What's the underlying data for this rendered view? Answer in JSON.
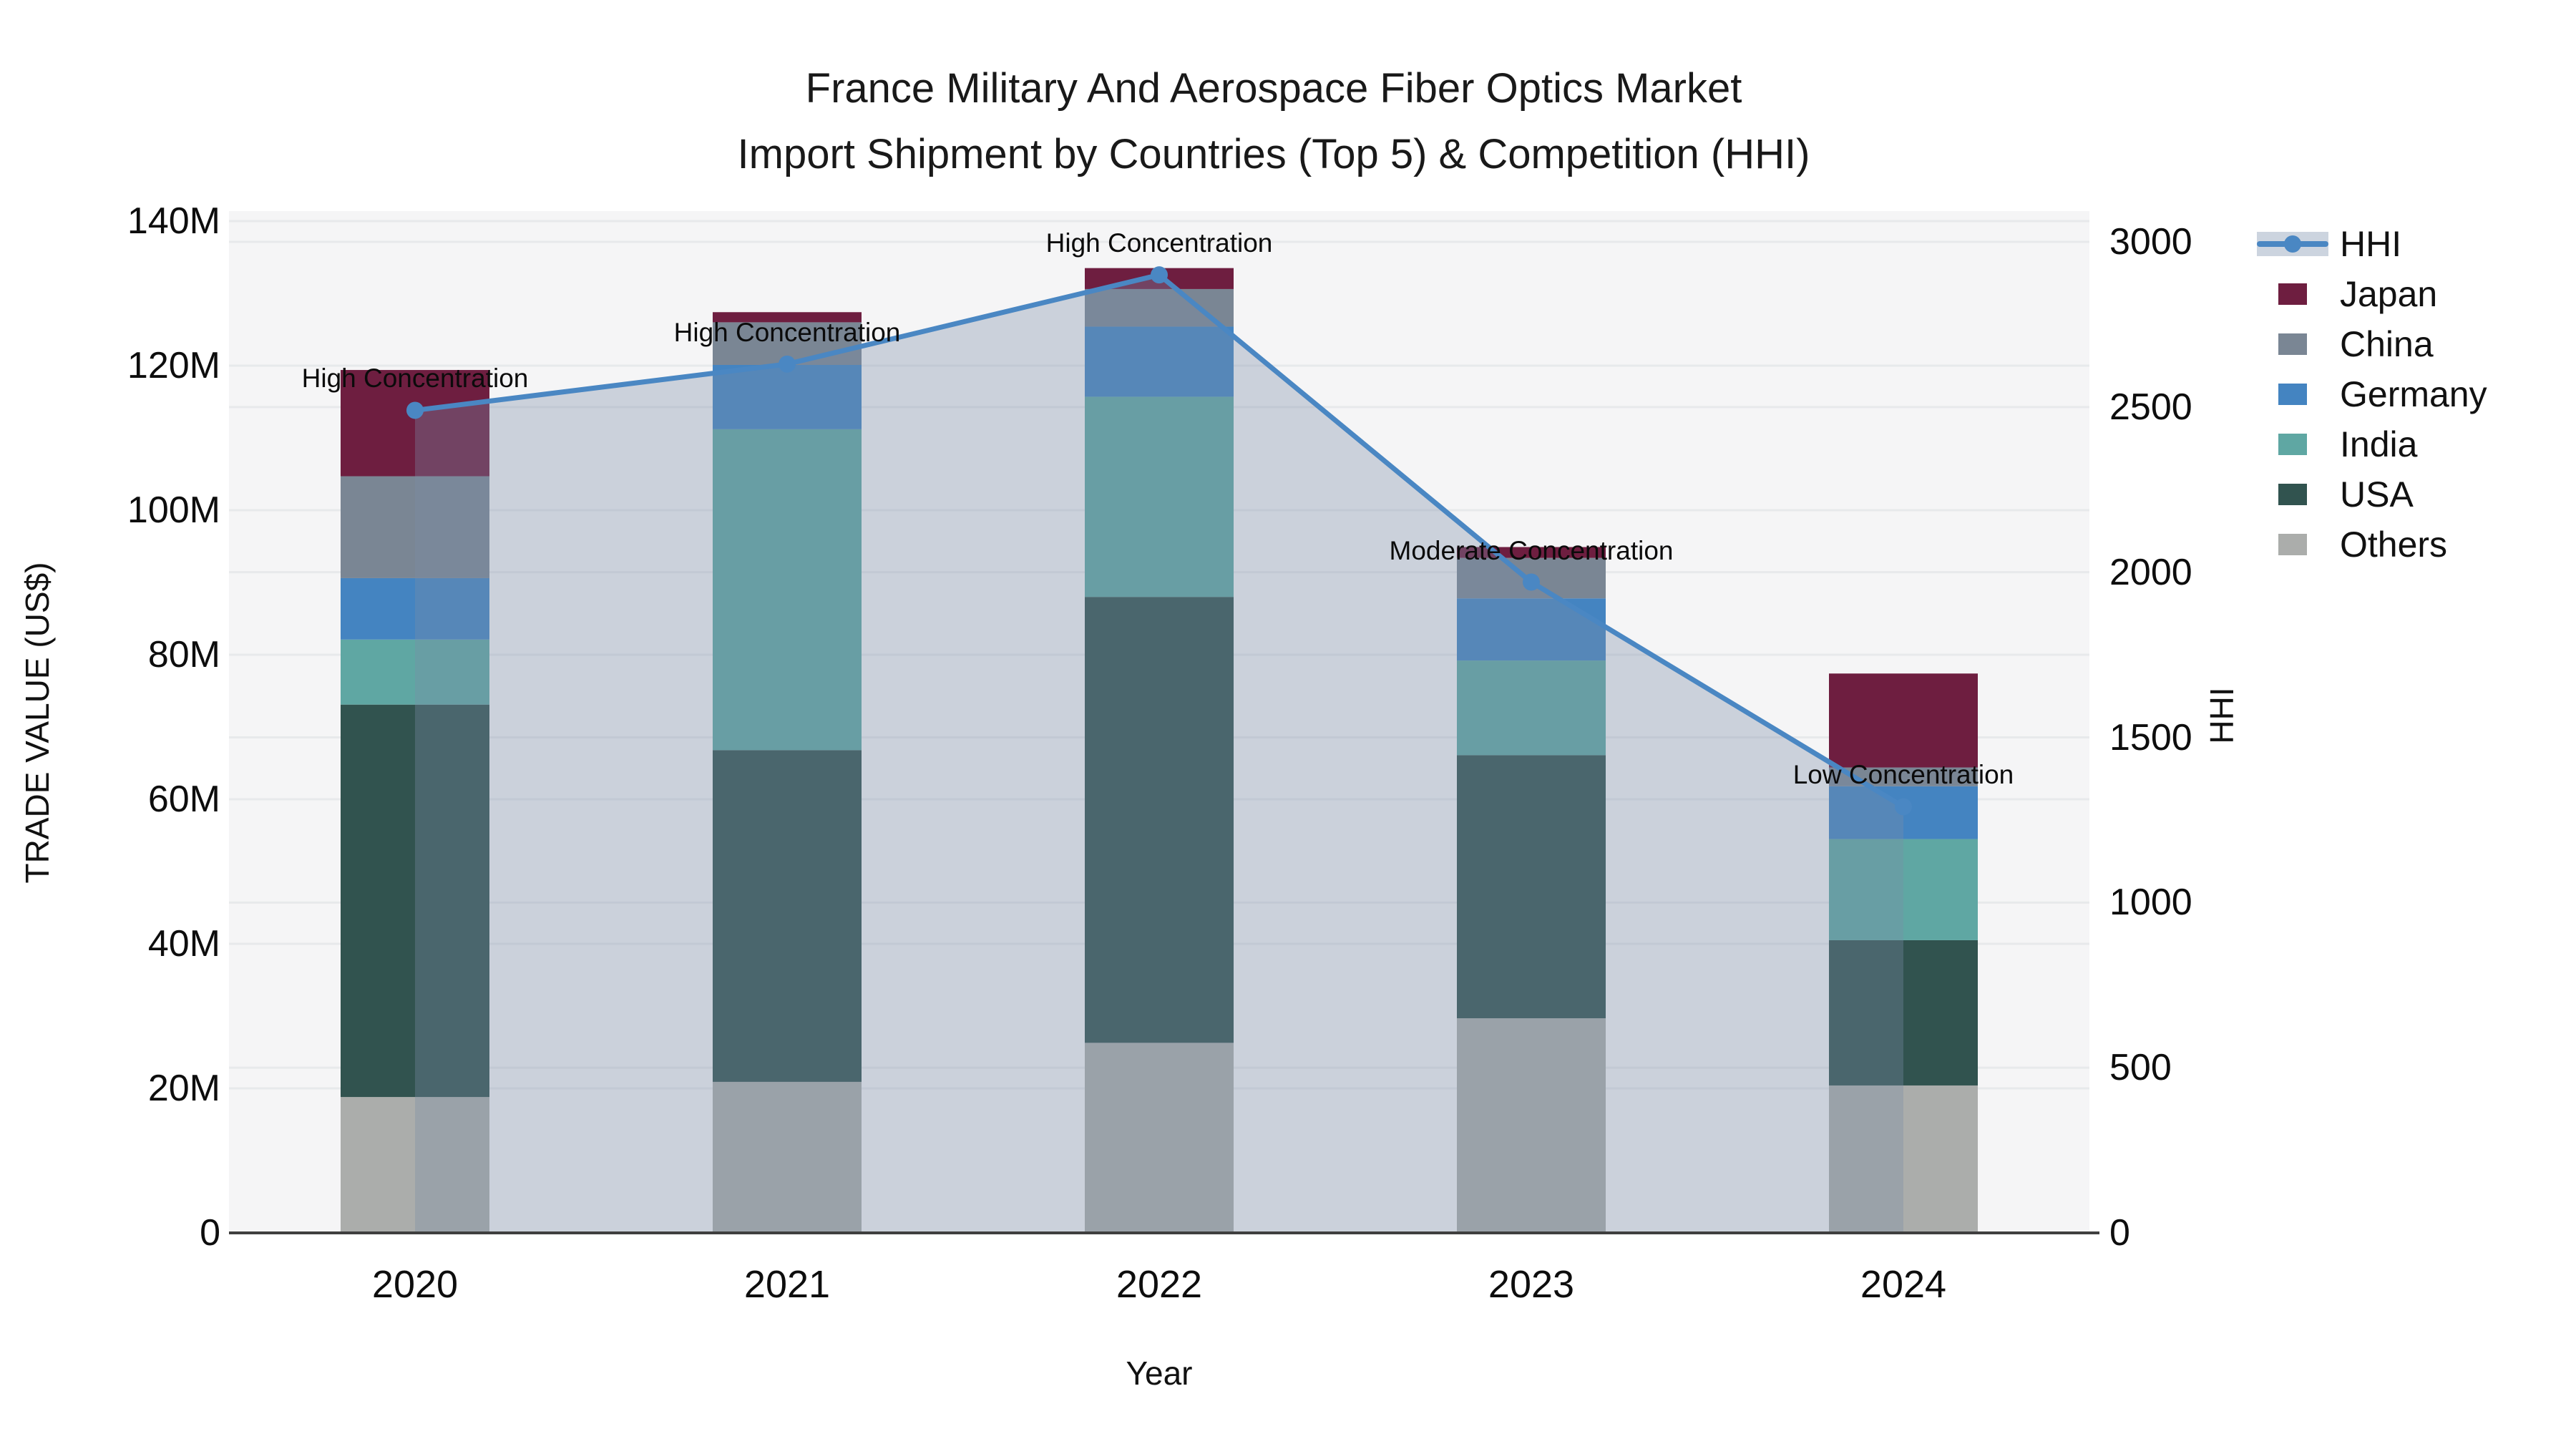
{
  "title": {
    "line1": "France Military And Aerospace Fiber Optics Market",
    "line2": "Import Shipment by Countries (Top 5) & Competition (HHI)"
  },
  "chart_data": {
    "type": "bar",
    "subtype": "stacked-bars-with-line-overlay",
    "categories": [
      "2020",
      "2021",
      "2022",
      "2023",
      "2024"
    ],
    "xlabel": "Year",
    "ylabel": "TRADE VALUE (US$)",
    "y2label": "HHI",
    "ylim_millions": [
      0,
      141.5
    ],
    "y2lim": [
      0,
      3000
    ],
    "grid": "on",
    "yticks": [
      "0",
      "20M",
      "40M",
      "60M",
      "80M",
      "100M",
      "120M",
      "140M"
    ],
    "ytick_values_millions": [
      0,
      20,
      40,
      60,
      80,
      100,
      120,
      140
    ],
    "y2ticks": [
      "0",
      "500",
      "1000",
      "1500",
      "2000",
      "2500",
      "3000"
    ],
    "y2tick_values": [
      0,
      500,
      1000,
      1500,
      2000,
      2500,
      3000
    ],
    "series": [
      {
        "name": "Others",
        "color": "#abadab",
        "values_millions": [
          18.8,
          20.9,
          26.3,
          29.7,
          20.4
        ]
      },
      {
        "name": "USA",
        "color": "#31534f",
        "values_millions": [
          54.3,
          45.9,
          61.7,
          36.4,
          20.1
        ]
      },
      {
        "name": "India",
        "color": "#5fa7a3",
        "values_millions": [
          9.0,
          44.4,
          27.7,
          13.1,
          14.0
        ]
      },
      {
        "name": "Germany",
        "color": "#4484c1",
        "values_millions": [
          8.5,
          8.9,
          9.7,
          8.6,
          7.3
        ]
      },
      {
        "name": "China",
        "color": "#7a8694",
        "values_millions": [
          14.1,
          5.9,
          5.2,
          5.6,
          2.6
        ]
      },
      {
        "name": "Japan",
        "color": "#6e1e40",
        "values_millions": [
          14.7,
          1.4,
          2.9,
          1.5,
          13.0
        ]
      }
    ],
    "line_series": {
      "name": "HHI",
      "color": "#4a87c3",
      "area_fill": "rgba(124,141,167,0.34)",
      "values": [
        2490,
        2630,
        2900,
        1970,
        1290
      ]
    },
    "annotations": [
      {
        "category": "2020",
        "text": "High Concentration"
      },
      {
        "category": "2021",
        "text": "High Concentration"
      },
      {
        "category": "2022",
        "text": "High Concentration"
      },
      {
        "category": "2023",
        "text": "Moderate Concentration"
      },
      {
        "category": "2024",
        "text": "Low Concentration"
      }
    ],
    "legend_position": "right",
    "legend_items": [
      "HHI",
      "Japan",
      "China",
      "Germany",
      "India",
      "USA",
      "Others"
    ],
    "plot_bg_color": "#f5f5f6",
    "gridline_color": "#e7e9eb",
    "axis_line_color": "#3f3f3f"
  }
}
